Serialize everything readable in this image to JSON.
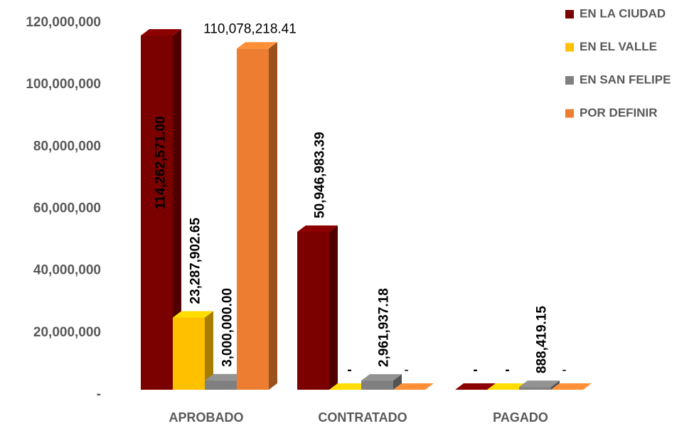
{
  "chart_data": {
    "type": "bar3d",
    "categories": [
      "APROBADO",
      "CONTRATADO",
      "PAGADO"
    ],
    "series": [
      {
        "name": "EN LA CIUDAD",
        "color": "#7b0000",
        "values": [
          114262571.0,
          50946983.39,
          0
        ],
        "value_labels": [
          "114,262,571.00",
          "50,946,983.39",
          "-"
        ]
      },
      {
        "name": "EN EL VALLE",
        "color": "#ffc000",
        "values": [
          23287902.65,
          0,
          0
        ],
        "value_labels": [
          "23,287,902.65",
          "-",
          "-"
        ]
      },
      {
        "name": "EN SAN FELIPE",
        "color": "#808080",
        "values": [
          3000000.0,
          2961937.18,
          888419.15
        ],
        "value_labels": [
          "3,000,000.00",
          "2,961,937.18",
          "888,419.15"
        ]
      },
      {
        "name": "POR DEFINIR",
        "color": "#ed7d31",
        "values": [
          110078218.41,
          0,
          0
        ],
        "value_labels": [
          "110,078,218.41",
          "-",
          "-"
        ]
      }
    ],
    "ylim": [
      0,
      120000000
    ],
    "yticks": [
      {
        "value": 0,
        "label": "-"
      },
      {
        "value": 20000000,
        "label": "20,000,000"
      },
      {
        "value": 40000000,
        "label": "40,000,000"
      },
      {
        "value": 60000000,
        "label": "60,000,000"
      },
      {
        "value": 80000000,
        "label": "80,000,000"
      },
      {
        "value": 100000000,
        "label": "100,000,000"
      },
      {
        "value": 120000000,
        "label": "120,000,000"
      }
    ],
    "legend": "top-right"
  }
}
